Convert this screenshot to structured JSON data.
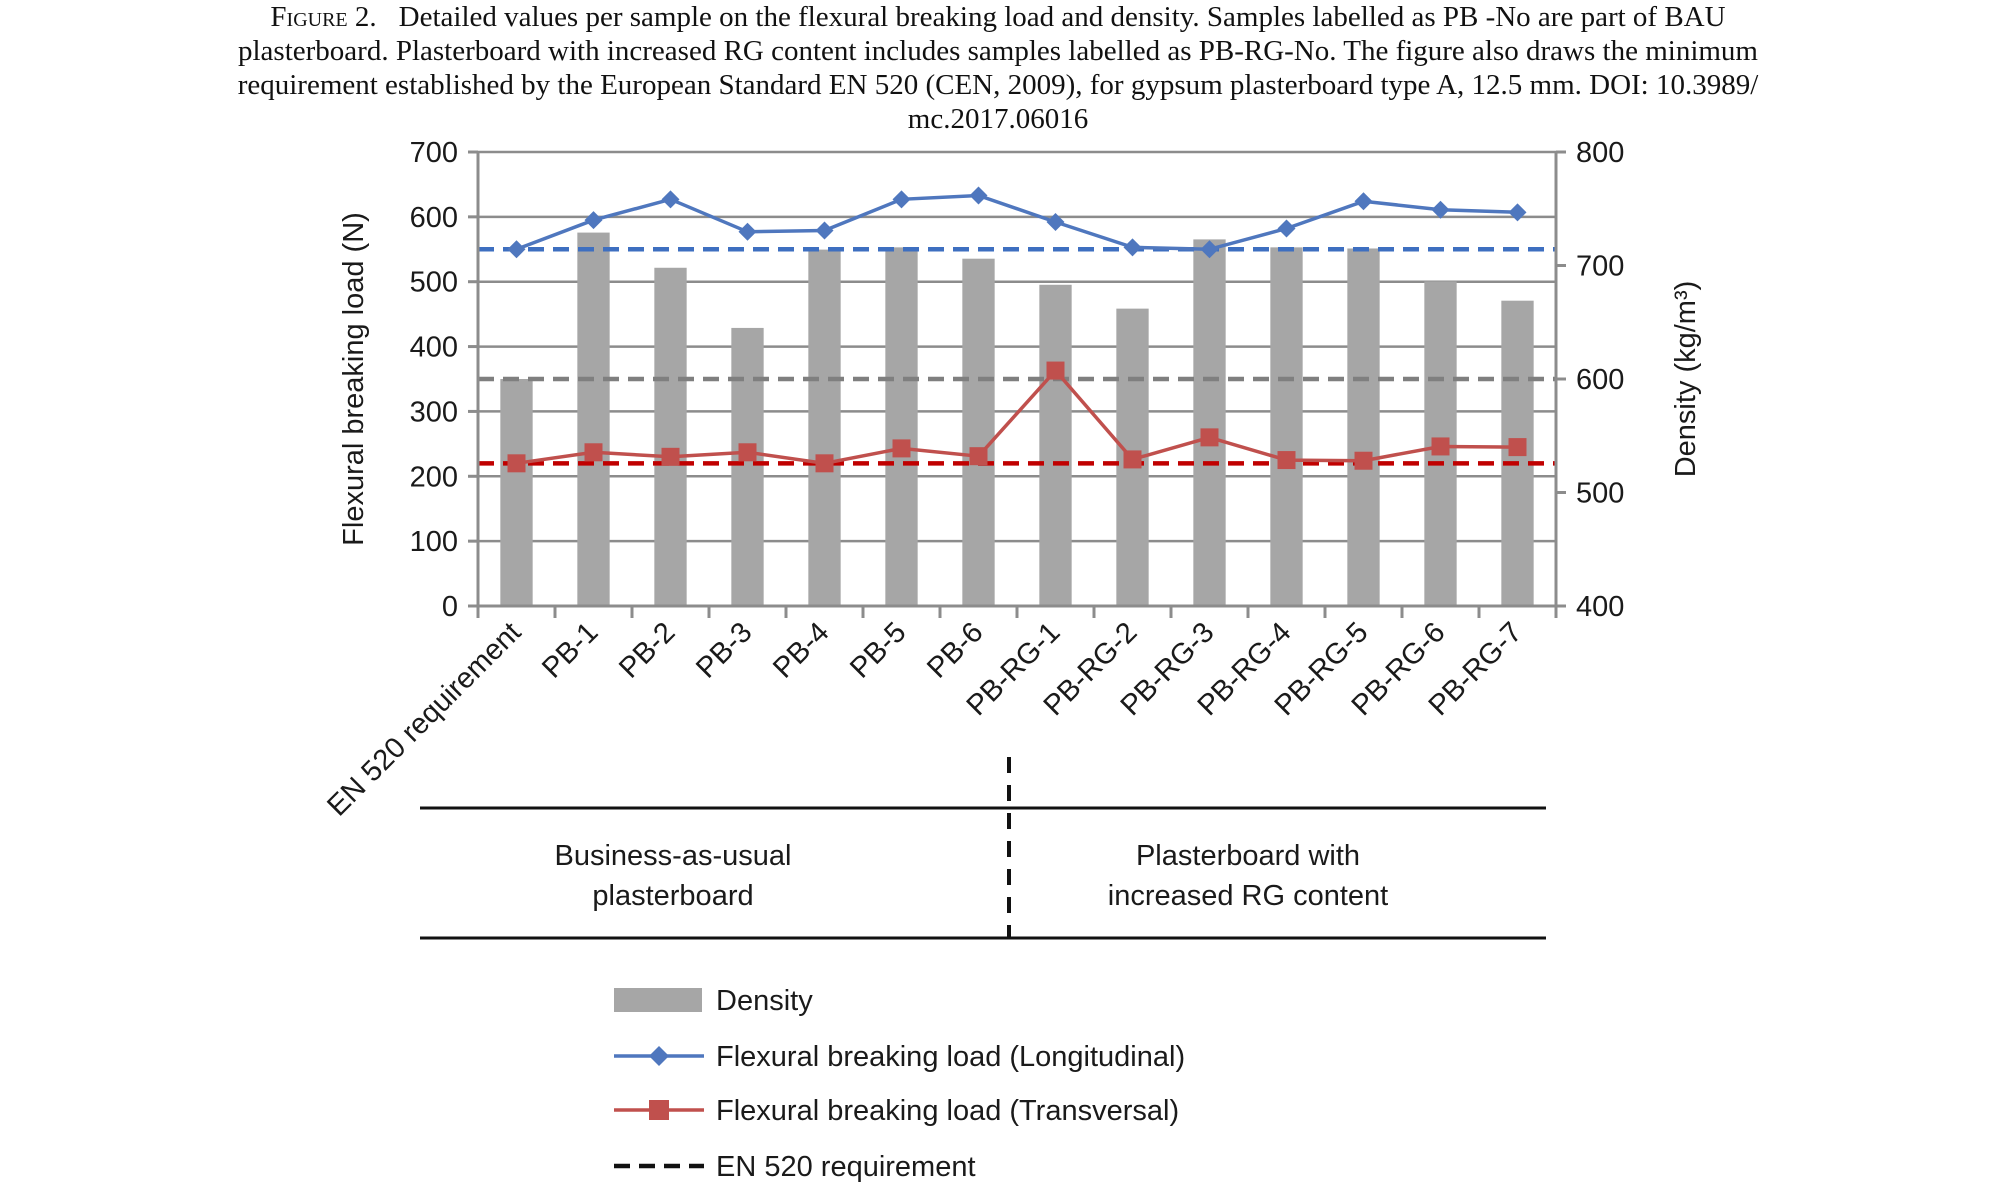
{
  "caption": {
    "figure_label": "Figure 2.",
    "lines": [
      "Detailed values per sample on the flexural breaking load and density. Samples labelled as PB -No are part of BAU",
      "plasterboard. Plasterboard with increased RG content includes samples labelled as PB-RG-No. The figure also draws the minimum",
      "requirement established by the European Standard EN 520 (CEN, 2009), for gypsum plasterboard type A, 12.5 mm. DOI: 10.3989/",
      "mc.2017.06016"
    ]
  },
  "chart_data": {
    "type": "bar",
    "categories": [
      "EN 520 requirement",
      "PB-1",
      "PB-2",
      "PB-3",
      "PB-4",
      "PB-5",
      "PB-6",
      "PB-RG-1",
      "PB-RG-2",
      "PB-RG-3",
      "PB-RG-4",
      "PB-RG-5",
      "PB-RG-6",
      "PB-RG-7"
    ],
    "ylabel": "Flexural breaking load (N)",
    "ylim": [
      0,
      700
    ],
    "yticks": [
      0,
      100,
      200,
      300,
      400,
      500,
      600,
      700
    ],
    "y2label": "Density (kg/m³)",
    "y2lim": [
      400,
      800
    ],
    "y2ticks": [
      400,
      500,
      600,
      700,
      800
    ],
    "grid": true,
    "series": [
      {
        "name": "Density",
        "kind": "bar",
        "axis": "right",
        "color": "#a6a6a6",
        "values": [
          600,
          729,
          698,
          645,
          714,
          716,
          706,
          683,
          662,
          723,
          716,
          715,
          686,
          669
        ]
      },
      {
        "name": "Flexural breaking load (Longitudinal)",
        "kind": "line",
        "marker": "diamond",
        "axis": "left",
        "color": "#4f77be",
        "values": [
          550,
          595,
          627,
          577,
          579,
          627,
          633,
          592,
          553,
          550,
          582,
          624,
          611,
          607
        ]
      },
      {
        "name": "Flexural breaking load (Transversal)",
        "kind": "line",
        "marker": "square",
        "axis": "left",
        "color": "#c0504d",
        "values": [
          220,
          237,
          230,
          237,
          220,
          243,
          231,
          363,
          226,
          260,
          225,
          224,
          246,
          245
        ]
      }
    ],
    "reference_lines": [
      {
        "axis": "left",
        "value": 550,
        "color": "#3e6fc0"
      },
      {
        "axis": "left",
        "value": 350,
        "color": "#7f7f7f"
      },
      {
        "axis": "left",
        "value": 220,
        "color": "#c00000"
      }
    ],
    "groups": [
      {
        "label_lines": [
          "Business-as-usual",
          "plasterboard"
        ]
      },
      {
        "label_lines": [
          "Plasterboard with",
          "increased RG content"
        ]
      }
    ],
    "legend": {
      "placement": "bottom",
      "items": [
        {
          "label": "Density",
          "symbol": "bar",
          "color": "#a6a6a6"
        },
        {
          "label": "Flexural breaking load (Longitudinal)",
          "symbol": "line-diamond",
          "color": "#4f77be"
        },
        {
          "label": "Flexural breaking load (Transversal)",
          "symbol": "line-square",
          "color": "#c0504d"
        },
        {
          "label": "EN 520 requirement",
          "symbol": "dashed",
          "color": "#111111"
        }
      ]
    }
  }
}
